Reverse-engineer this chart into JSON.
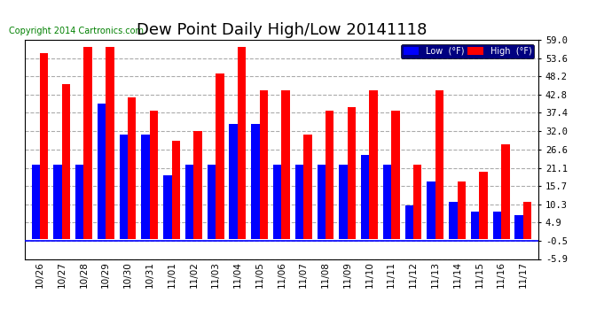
{
  "title": "Dew Point Daily High/Low 20141118",
  "copyright": "Copyright 2014 Cartronics.com",
  "dates": [
    "10/26",
    "10/27",
    "10/28",
    "10/29",
    "10/30",
    "10/31",
    "11/01",
    "11/02",
    "11/03",
    "11/04",
    "11/05",
    "11/06",
    "11/07",
    "11/08",
    "11/09",
    "11/10",
    "11/11",
    "11/12",
    "11/13",
    "11/14",
    "11/15",
    "11/16",
    "11/17"
  ],
  "high": [
    55.0,
    46.0,
    57.0,
    57.0,
    42.0,
    38.0,
    29.0,
    32.0,
    49.0,
    57.0,
    44.0,
    44.0,
    31.0,
    38.0,
    39.0,
    44.0,
    38.0,
    22.0,
    44.0,
    17.0,
    20.0,
    28.0,
    11.0
  ],
  "low": [
    22.0,
    22.0,
    22.0,
    40.0,
    31.0,
    31.0,
    19.0,
    22.0,
    22.0,
    34.0,
    34.0,
    22.0,
    22.0,
    22.0,
    22.0,
    25.0,
    22.0,
    10.0,
    17.0,
    11.0,
    8.0,
    8.0,
    7.0
  ],
  "ylim": [
    -5.9,
    59.0
  ],
  "yticks": [
    -5.9,
    -0.5,
    4.9,
    10.3,
    15.7,
    21.1,
    26.6,
    32.0,
    37.4,
    42.8,
    48.2,
    53.6,
    59.0
  ],
  "bar_width": 0.38,
  "low_color": "#0000ff",
  "high_color": "#ff0000",
  "bg_color": "#ffffff",
  "grid_color": "#aaaaaa",
  "title_fontsize": 13,
  "copyright_fontsize": 7,
  "tick_fontsize": 7.5,
  "legend_bg": "#000080"
}
